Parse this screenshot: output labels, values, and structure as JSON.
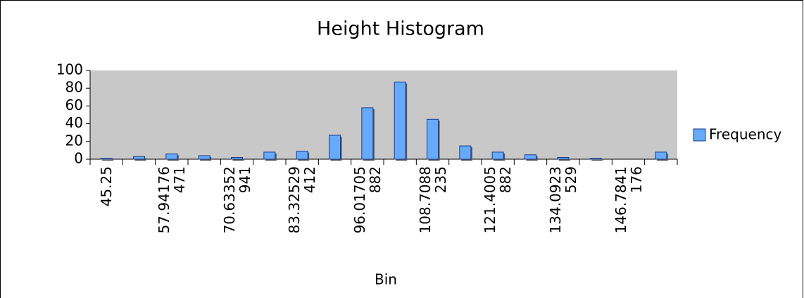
{
  "chart_data": {
    "type": "bar",
    "title": "Height Histogram",
    "x_label": "Bin",
    "categories": [
      "45.25",
      null,
      "57.94176471",
      null,
      "70.63352941",
      null,
      "83.32529412",
      null,
      "96.01705882",
      null,
      "108.7088235",
      null,
      "121.4005882",
      null,
      "134.0923529",
      null,
      "146.7841176",
      null
    ],
    "series": [
      {
        "name": "Frequency",
        "color": "#66aaff",
        "values": [
          1,
          3,
          6,
          4,
          2,
          8,
          9,
          27,
          58,
          87,
          45,
          15,
          8,
          5,
          2,
          1,
          0,
          8
        ]
      }
    ],
    "ylim": [
      0,
      100
    ],
    "yticks": [
      0,
      20,
      40,
      60,
      80,
      100
    ],
    "legend": "right",
    "plot_background": "#c8c8c8"
  }
}
